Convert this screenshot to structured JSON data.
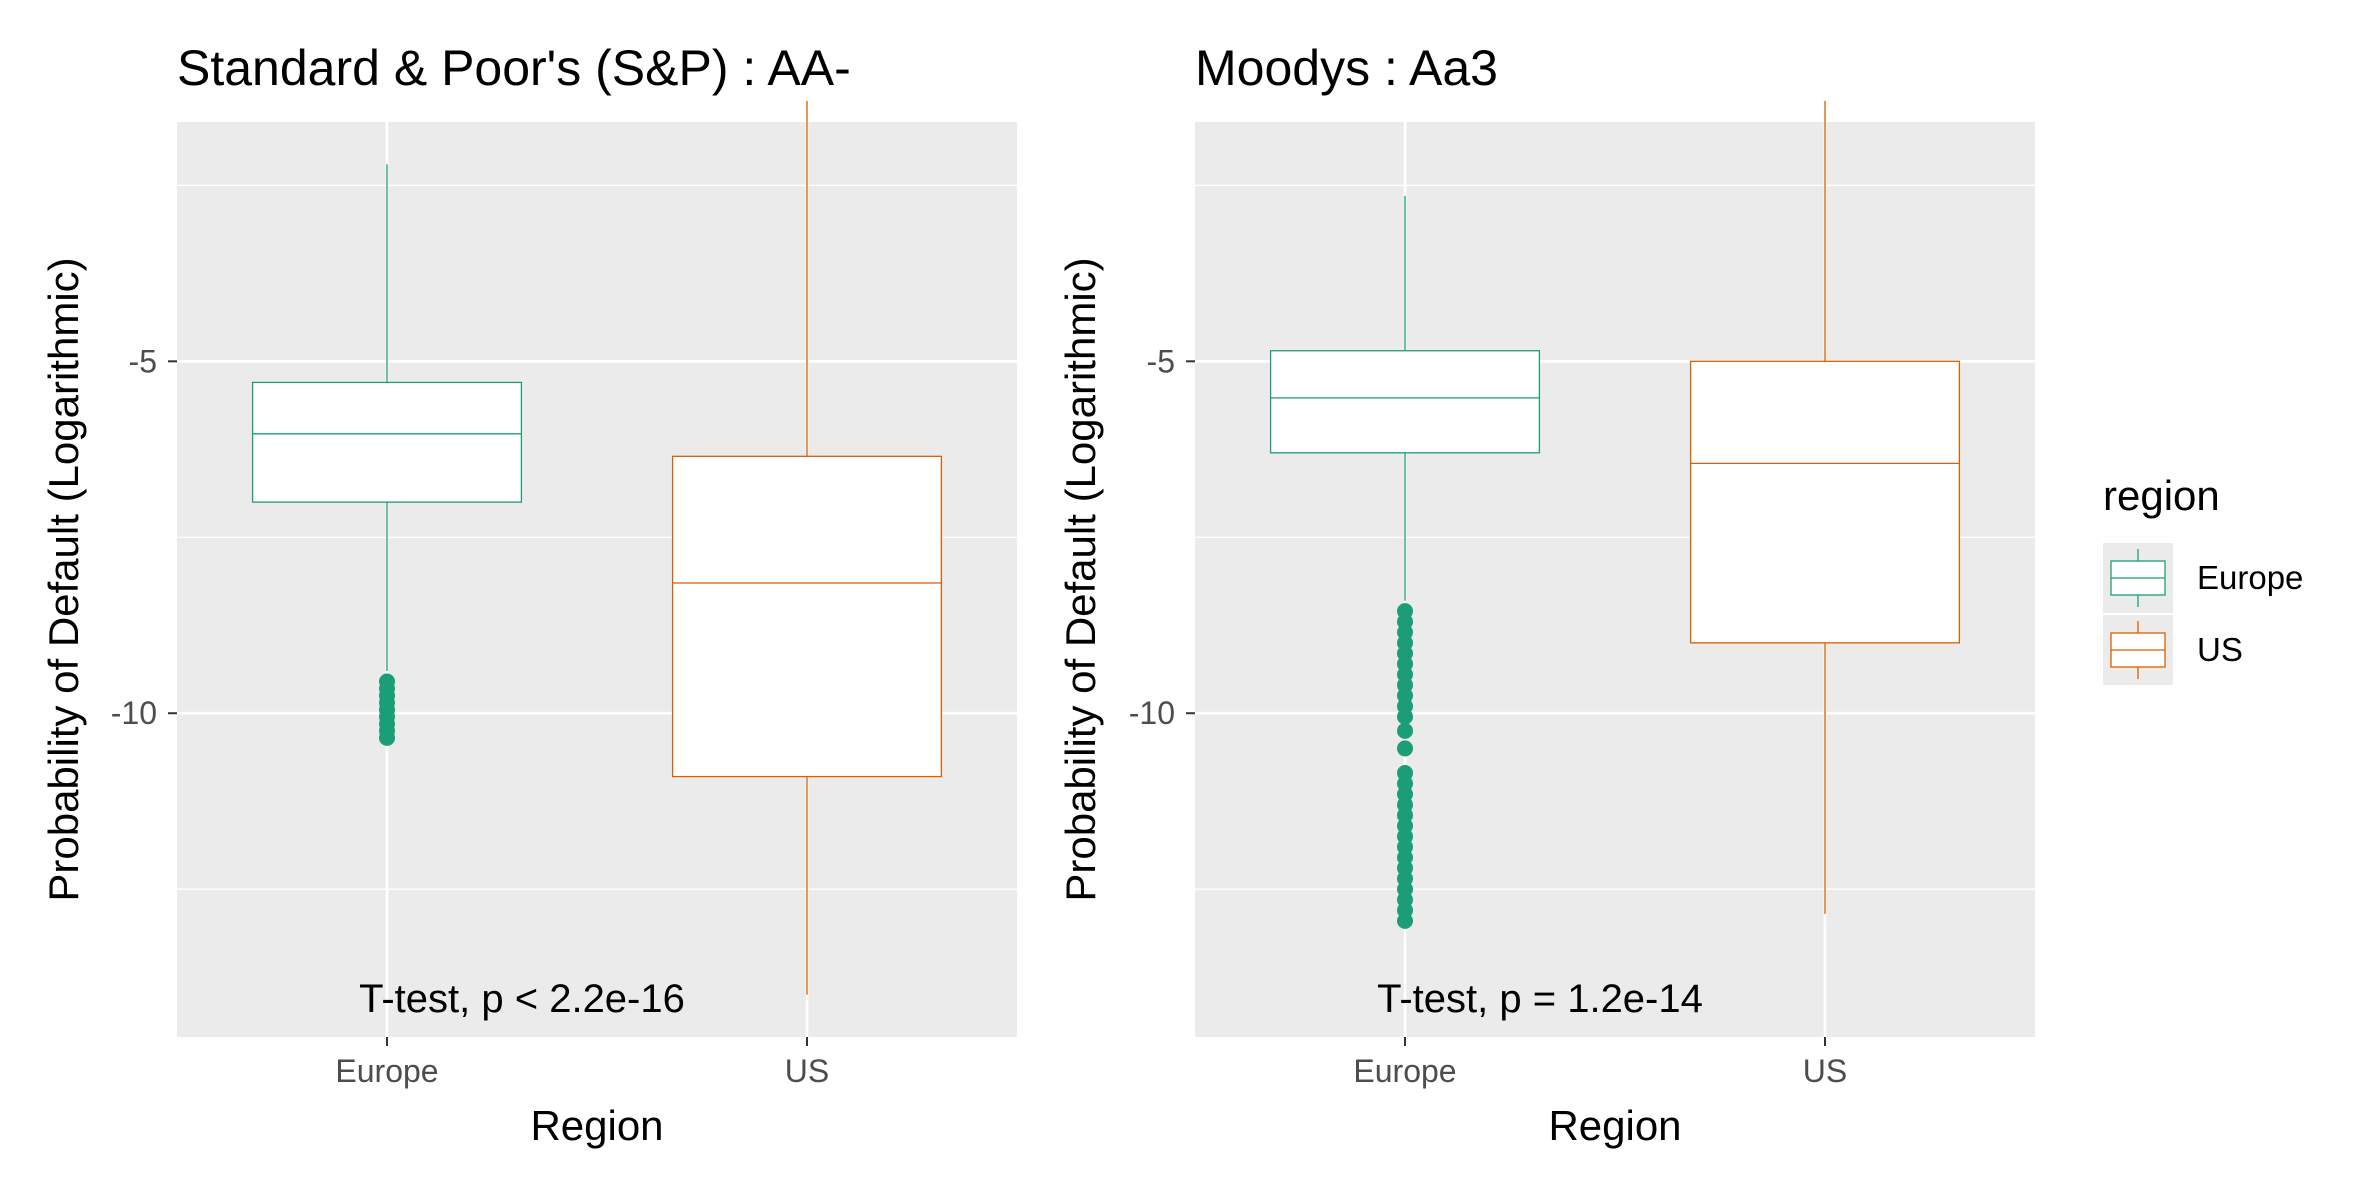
{
  "chart_data": [
    {
      "type": "boxplot",
      "title": "Standard & Poor's (S&P) : AA-",
      "xlabel": "Region",
      "ylabel": "Probability of Default (Logarithmic)",
      "categories": [
        "Europe",
        "US"
      ],
      "y_ticks": [
        -5,
        -10
      ],
      "y_tick_labels": [
        "-5",
        "-10"
      ],
      "ylim": [
        -14.6,
        -1.6
      ],
      "grid": true,
      "annotation": "T-test, p < 2.2e-16",
      "boxes": [
        {
          "category": "Europe",
          "whisker_low": -9.4,
          "q1": -7.0,
          "median": -6.03,
          "q3": -5.3,
          "whisker_high": -2.2,
          "outliers": [
            -9.55,
            -9.65,
            -9.75,
            -9.85,
            -9.95,
            -10.05,
            -10.15,
            -10.25,
            -10.35
          ]
        },
        {
          "category": "US",
          "whisker_low": -14.0,
          "q1": -10.9,
          "median": -8.15,
          "q3": -6.35,
          "whisker_high": -1.3,
          "outliers": []
        }
      ]
    },
    {
      "type": "boxplot",
      "title": "Moodys : Aa3",
      "xlabel": "Region",
      "ylabel": "Probability of Default (Logarithmic)",
      "categories": [
        "Europe",
        "US"
      ],
      "y_ticks": [
        -5,
        -10
      ],
      "y_tick_labels": [
        "-5",
        "-10"
      ],
      "ylim": [
        -14.6,
        -1.6
      ],
      "grid": true,
      "annotation": "T-test, p = 1.2e-14",
      "boxes": [
        {
          "category": "Europe",
          "whisker_low": -8.4,
          "q1": -6.3,
          "median": -5.52,
          "q3": -4.85,
          "whisker_high": -2.65,
          "outliers": [
            -8.55,
            -8.7,
            -8.85,
            -9.0,
            -9.15,
            -9.3,
            -9.45,
            -9.6,
            -9.75,
            -9.9,
            -10.05,
            -10.25,
            -10.5,
            -10.85,
            -11.0,
            -11.15,
            -11.3,
            -11.45,
            -11.6,
            -11.75,
            -11.9,
            -12.05,
            -12.2,
            -12.35,
            -12.5,
            -12.65,
            -12.8,
            -12.95
          ]
        },
        {
          "category": "US",
          "whisker_low": -12.85,
          "q1": -9.0,
          "median": -6.45,
          "q3": -5.0,
          "whisker_high": -1.3,
          "outliers": []
        }
      ]
    }
  ],
  "legend": {
    "title": "region",
    "placement": "right",
    "items": [
      {
        "label": "Europe",
        "color": "#1b9e77"
      },
      {
        "label": "US",
        "color": "#d95f02"
      }
    ]
  },
  "colors": {
    "panel_background": "#ebebeb",
    "grid": "#ffffff",
    "Europe": "#1b9e77",
    "US": "#d95f02"
  }
}
